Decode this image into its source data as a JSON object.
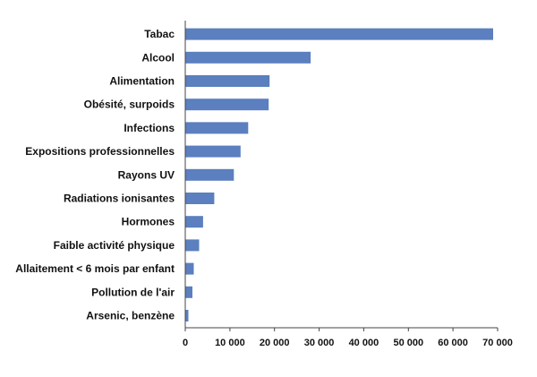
{
  "chart_data": {
    "type": "bar",
    "orientation": "horizontal",
    "categories": [
      "Tabac",
      "Alcool",
      "Alimentation",
      "Obésité, surpoids",
      "Infections",
      "Expositions professionnelles",
      "Rayons UV",
      "Radiations ionisantes",
      "Hormones",
      "Faible activité physique",
      "Allaitement < 6 mois par enfant",
      "Pollution de l'air",
      "Arsenic, benzène"
    ],
    "values": [
      69000,
      28100,
      18900,
      18700,
      14100,
      12400,
      10900,
      6500,
      4000,
      3100,
      1900,
      1600,
      700
    ],
    "xlim": [
      0,
      70000
    ],
    "xticks": [
      "0",
      "10 000",
      "20 000",
      "30 000",
      "40 000",
      "50 000",
      "60 000",
      "70 000"
    ],
    "grid": false,
    "legend": "none",
    "bar_color": "#5b7fbf",
    "axis_color": "#444444"
  }
}
